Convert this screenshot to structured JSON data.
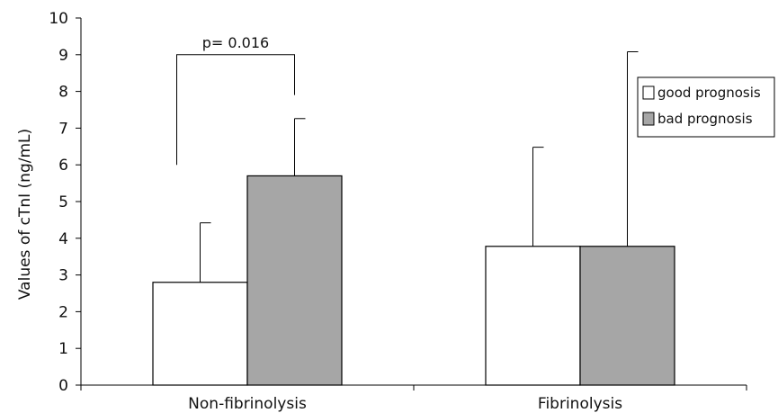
{
  "chart_data": {
    "type": "bar",
    "categories": [
      "Non-fibrinolysis",
      "Fibrinolysis"
    ],
    "series": [
      {
        "name": "good prognosis",
        "values": [
          2.8,
          3.78
        ],
        "error_upper": [
          4.42,
          6.48
        ],
        "color": "#ffffff"
      },
      {
        "name": "bad prognosis",
        "values": [
          5.7,
          3.78
        ],
        "error_upper": [
          7.26,
          9.08
        ],
        "color": "#a6a6a6"
      }
    ],
    "ylabel": "Values of cTnI (ng/mL)",
    "xlabel": "",
    "title": "",
    "ylim": [
      0,
      10
    ],
    "yticks": [
      0,
      1,
      2,
      3,
      4,
      5,
      6,
      7,
      8,
      9,
      10
    ],
    "grid": false,
    "legend_position": "right",
    "annotations": [
      {
        "text": "p= 0.016",
        "category": "Non-fibrinolysis",
        "bracket_left_y": 6.0,
        "bracket_right_y": 7.9,
        "bracket_top_y": 9.0
      }
    ]
  }
}
